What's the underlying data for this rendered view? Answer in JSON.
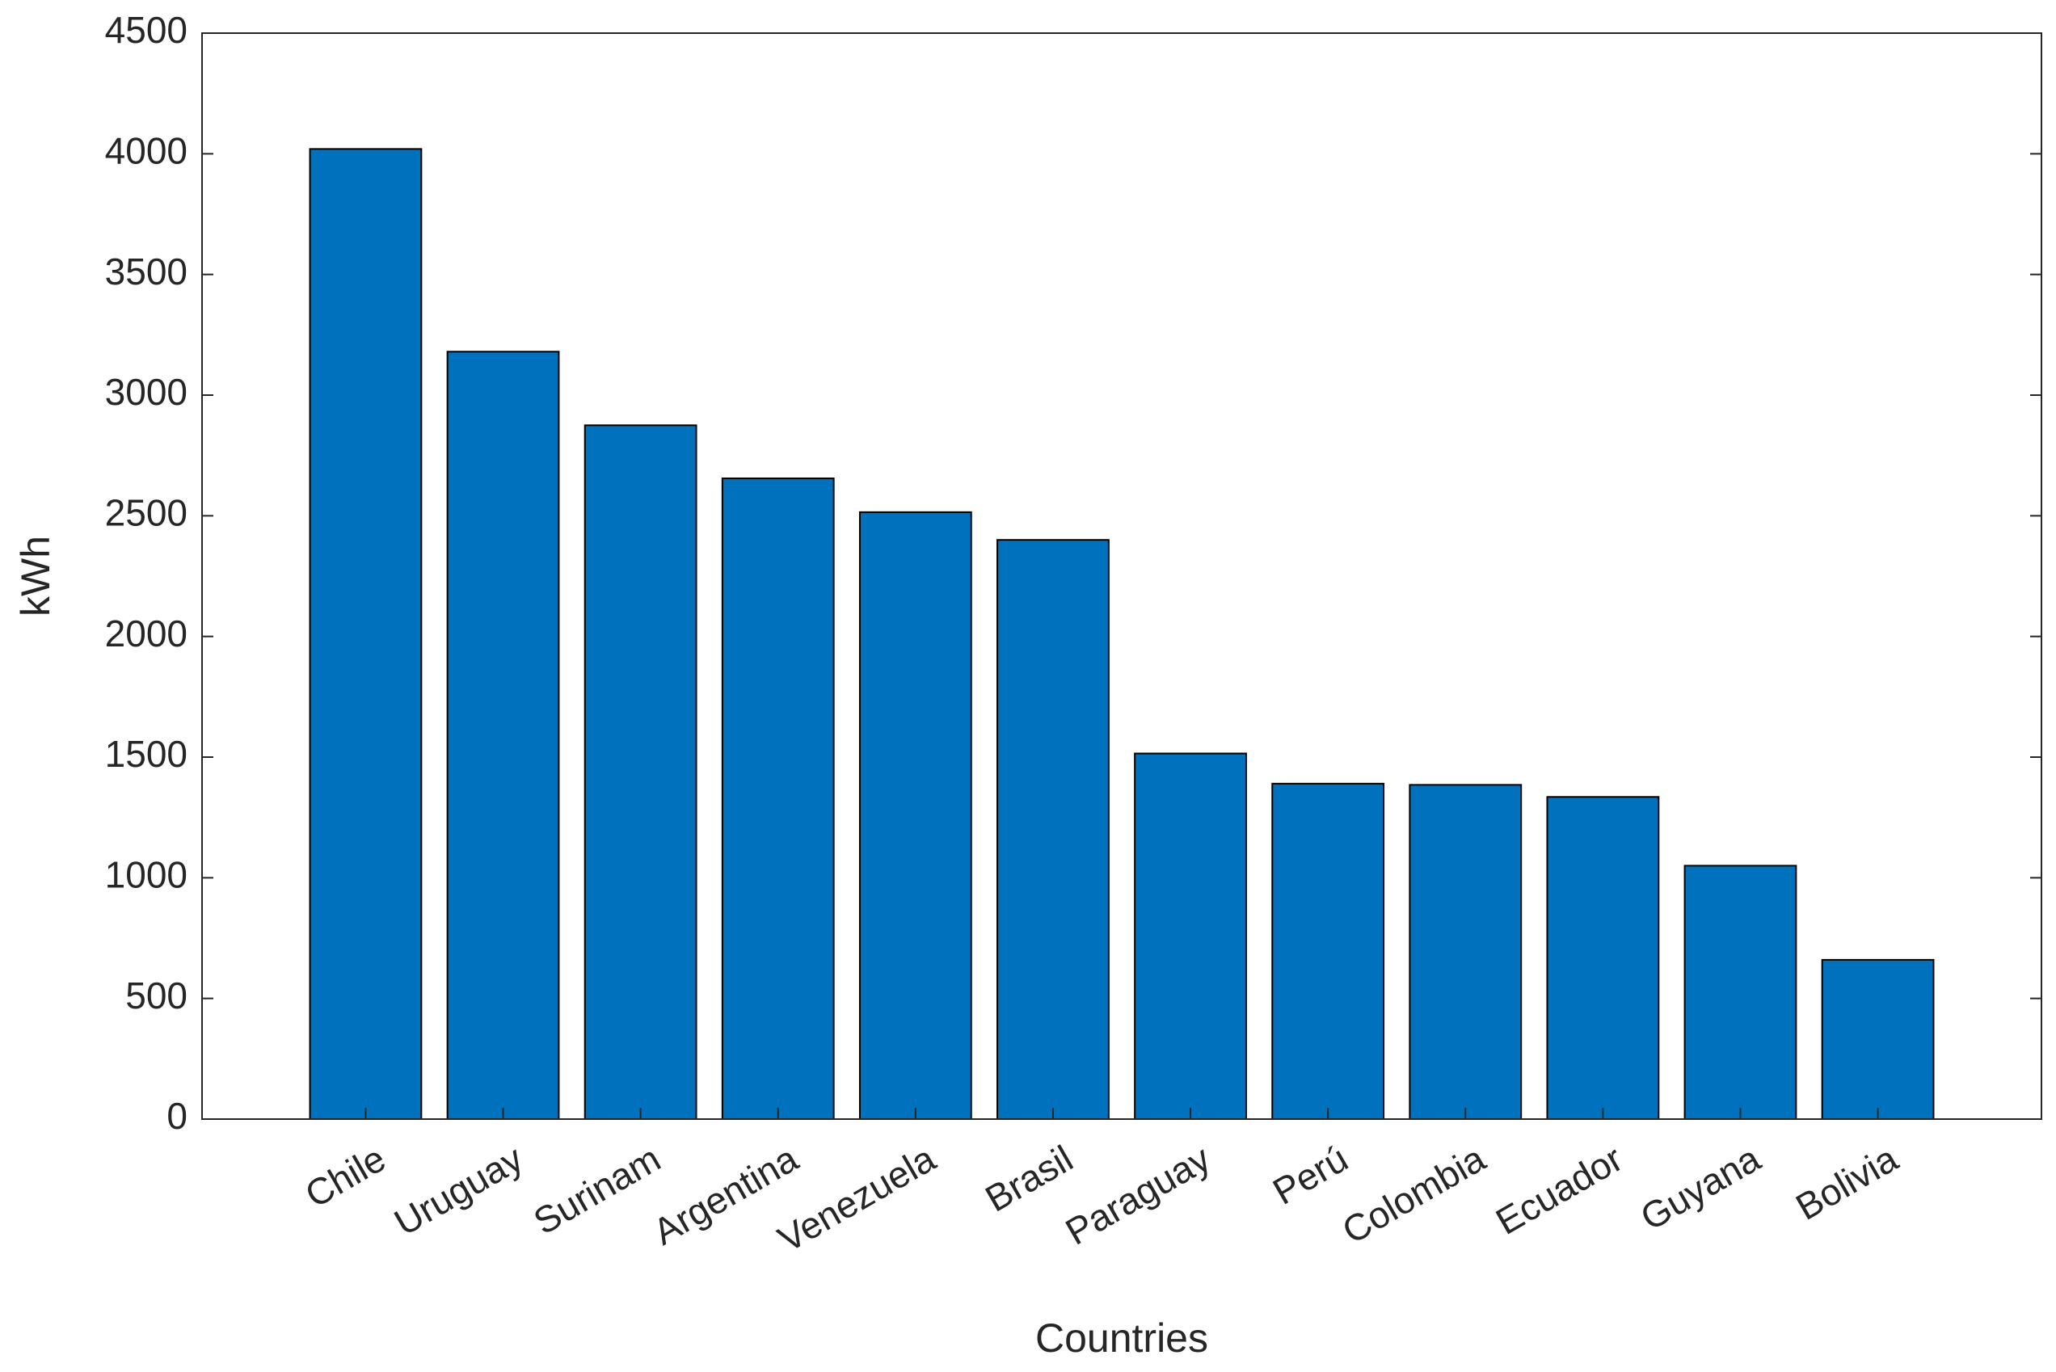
{
  "chart_data": {
    "type": "bar",
    "x_label": "Countries",
    "y_label": "kWh",
    "categories": [
      "Chile",
      "Uruguay",
      "Surinam",
      "Argentina",
      "Venezuela",
      "Brasil",
      "Paraguay",
      "Perú",
      "Colombia",
      "Ecuador",
      "Guyana",
      "Bolivia"
    ],
    "values": [
      4020,
      3180,
      2875,
      2655,
      2515,
      2400,
      1515,
      1390,
      1385,
      1335,
      1050,
      660
    ],
    "color": "#0072bd",
    "ylim": [
      0,
      4500
    ],
    "yticks": [
      0,
      500,
      1000,
      1500,
      2000,
      2500,
      3000,
      3500,
      4000,
      4500
    ],
    "grid": false
  }
}
